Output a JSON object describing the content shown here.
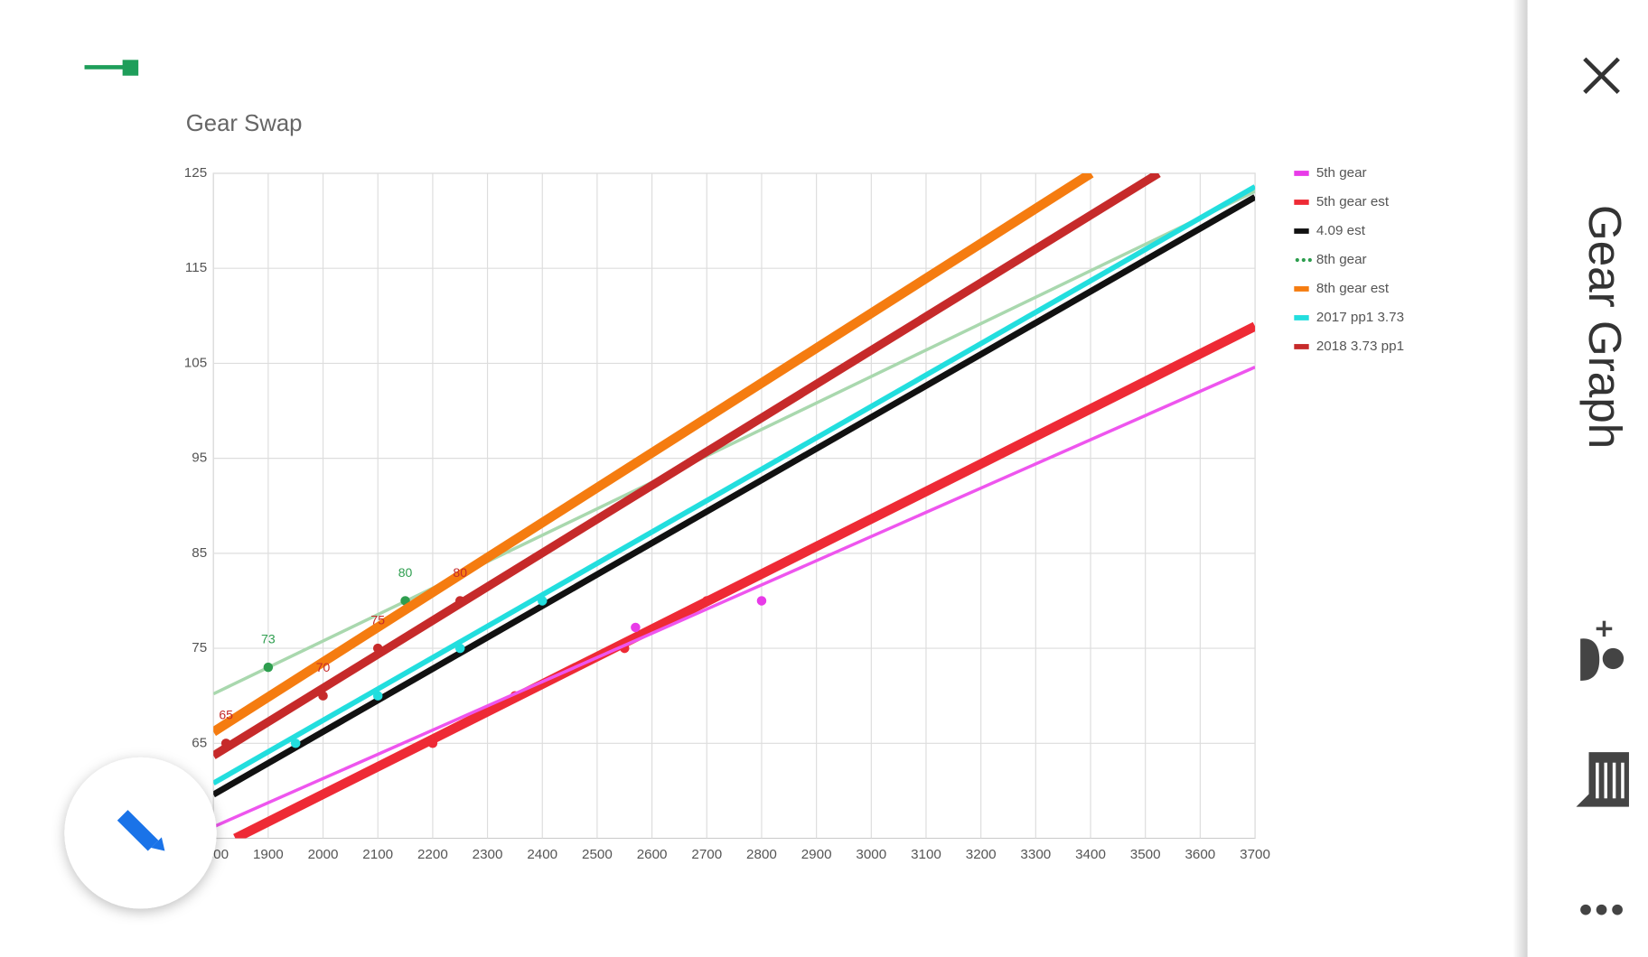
{
  "panel": {
    "title": "Gear Graph"
  },
  "chart_data": {
    "type": "line",
    "title": "Gear Swap",
    "xlim": [
      1800,
      3700
    ],
    "xticks": [
      1800,
      1900,
      2000,
      2100,
      2200,
      2300,
      2400,
      2500,
      2600,
      2700,
      2800,
      2900,
      3000,
      3100,
      3200,
      3300,
      3400,
      3500,
      3600,
      3700
    ],
    "ylim": [
      55,
      125
    ],
    "yticks": [
      65,
      75,
      85,
      95,
      105,
      115,
      125
    ],
    "grid": true,
    "legend": "right",
    "series": [
      {
        "name": "5th gear",
        "color": "#e83be8",
        "line_color": "#ee55ee",
        "width": 3,
        "x": [
          1800,
          3700
        ],
        "values": [
          56.2,
          104.6
        ],
        "dots_x": [
          2570,
          2800
        ],
        "dots": [
          77.2,
          80
        ]
      },
      {
        "name": "5th gear est",
        "color": "#ee2a35",
        "width": 9,
        "x": [
          1840,
          3700
        ],
        "values": [
          55,
          108.9
        ],
        "dots_x": [
          2200,
          2350,
          2550,
          2700
        ],
        "dots": [
          65,
          70,
          75,
          80
        ]
      },
      {
        "name": "4.09 est",
        "color": "#111111",
        "width": 6,
        "x": [
          1800,
          3700
        ],
        "values": [
          59.6,
          122.5
        ]
      },
      {
        "name": "8th gear",
        "color": "#2e9e4f",
        "line_color": "#a9d8ae",
        "width": 3,
        "dotted": true,
        "x": [
          1800,
          3700
        ],
        "values": [
          70.2,
          123.1
        ],
        "dots_x": [
          1900,
          2150
        ],
        "dots": [
          73,
          80
        ],
        "dot_labels": true
      },
      {
        "name": "8th gear est",
        "color": "#f57c10",
        "width": 9,
        "x": [
          1800,
          3401
        ],
        "values": [
          66.2,
          125
        ]
      },
      {
        "name": "2017 pp1 3.73",
        "color": "#22dede",
        "width": 5,
        "x": [
          1800,
          3700
        ],
        "values": [
          60.8,
          123.6
        ],
        "dots_x": [
          1950,
          2100,
          2250,
          2400
        ],
        "dots": [
          65,
          70,
          75,
          80
        ]
      },
      {
        "name": "2018 3.73 pp1",
        "color": "#c62a2a",
        "width": 8,
        "x": [
          1800,
          3524
        ],
        "values": [
          63.7,
          125
        ],
        "dots_x": [
          1823,
          2000,
          2100,
          2250
        ],
        "dots": [
          65,
          70,
          75,
          80
        ],
        "dot_labels": true
      }
    ]
  }
}
